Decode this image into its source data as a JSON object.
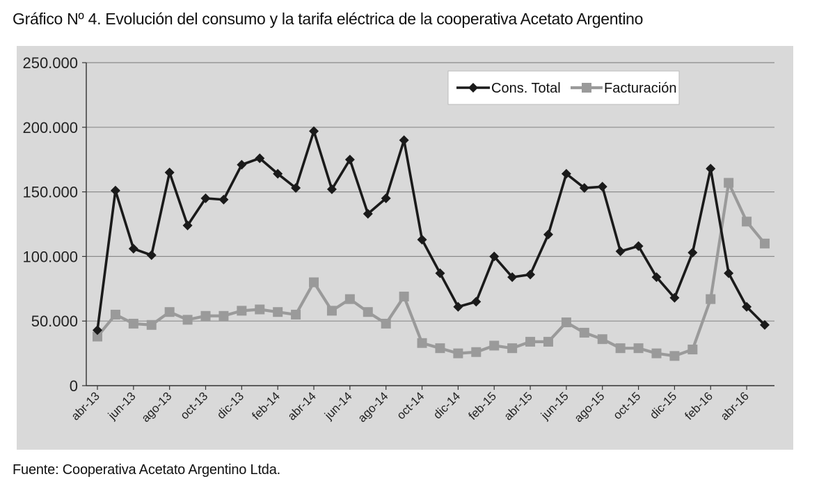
{
  "title": "Gráfico Nº 4. Evolución del consumo y la tarifa eléctrica de la cooperativa Acetato Argentino",
  "source": "Fuente: Cooperativa Acetato Argentino Ltda.",
  "colors": {
    "background": "#d9d9d9",
    "consumo": "#1a1a1a",
    "facturacion": "#9a9a9a",
    "grid": "#8c8c8c"
  },
  "chart_data": {
    "type": "line",
    "title": "",
    "xlabel": "",
    "ylabel": "",
    "ylim": [
      0,
      250000
    ],
    "y_ticks": [
      0,
      50000,
      100000,
      150000,
      200000,
      250000
    ],
    "y_tick_labels": [
      "0",
      "50.000",
      "100.000",
      "150.000",
      "200.000",
      "250.000"
    ],
    "grid": true,
    "legend_position": "top-right",
    "x": [
      "abr-13",
      "may-13",
      "jun-13",
      "jul-13",
      "ago-13",
      "sep-13",
      "oct-13",
      "nov-13",
      "dic-13",
      "ene-14",
      "feb-14",
      "mar-14",
      "abr-14",
      "may-14",
      "jun-14",
      "jul-14",
      "ago-14",
      "sep-14",
      "oct-14",
      "nov-14",
      "dic-14",
      "ene-15",
      "feb-15",
      "mar-15",
      "abr-15",
      "may-15",
      "jun-15",
      "jul-15",
      "ago-15",
      "sep-15",
      "oct-15",
      "nov-15",
      "dic-15",
      "ene-16",
      "feb-16",
      "mar-16",
      "abr-16",
      "may-16"
    ],
    "x_tick_labels": [
      "abr-13",
      "jun-13",
      "ago-13",
      "oct-13",
      "dic-13",
      "feb-14",
      "abr-14",
      "jun-14",
      "ago-14",
      "oct-14",
      "dic-14",
      "feb-15",
      "abr-15",
      "jun-15",
      "ago-15",
      "oct-15",
      "dic-15",
      "feb-16",
      "abr-16"
    ],
    "series": [
      {
        "name": "Cons. Total",
        "color": "#1a1a1a",
        "marker": "diamond",
        "values": [
          43000,
          151000,
          106000,
          101000,
          165000,
          124000,
          145000,
          144000,
          171000,
          176000,
          164000,
          153000,
          197000,
          152000,
          175000,
          133000,
          145000,
          190000,
          113000,
          87000,
          61000,
          65000,
          100000,
          84000,
          86000,
          117000,
          164000,
          153000,
          154000,
          104000,
          108000,
          84000,
          68000,
          103000,
          168000,
          87000,
          61000,
          47000
        ]
      },
      {
        "name": "Facturación",
        "color": "#9a9a9a",
        "marker": "square",
        "values": [
          38000,
          55000,
          48000,
          47000,
          57000,
          51000,
          54000,
          54000,
          58000,
          59000,
          57000,
          55000,
          80000,
          58000,
          67000,
          57000,
          48000,
          69000,
          33000,
          29000,
          25000,
          26000,
          31000,
          29000,
          34000,
          34000,
          49000,
          41000,
          36000,
          29000,
          29000,
          25000,
          23000,
          28000,
          67000,
          157000,
          127000,
          110000
        ]
      }
    ]
  }
}
